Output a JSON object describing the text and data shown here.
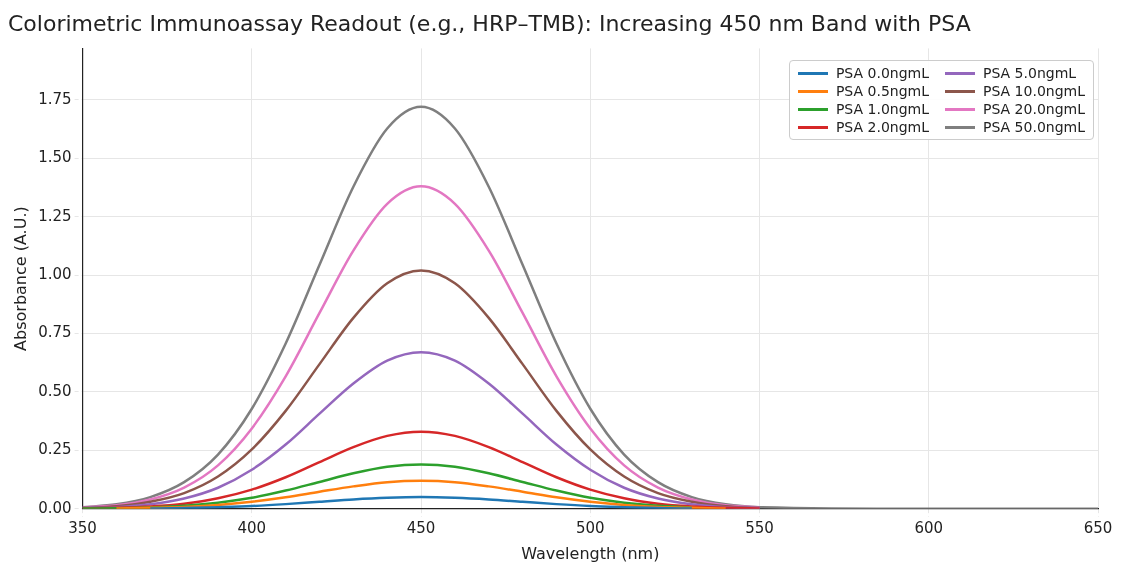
{
  "chart_data": {
    "type": "line",
    "title": "Colorimetric Immunoassay Readout (e.g., HRP–TMB): Increasing 450 nm Band with PSA",
    "xlabel": "Wavelength (nm)",
    "ylabel": "Absorbance (A.U.)",
    "x": [
      350,
      360,
      370,
      380,
      390,
      400,
      410,
      420,
      430,
      440,
      450,
      460,
      470,
      480,
      490,
      500,
      510,
      520,
      530,
      540,
      550,
      600,
      650
    ],
    "series": [
      {
        "name": "PSA 0.0ngmL",
        "color": "#1f77b4",
        "values": [
          null,
          null,
          0.001,
          0.003,
          0.007,
          0.012,
          0.02,
          0.03,
          0.04,
          0.047,
          0.05,
          0.047,
          0.04,
          0.03,
          0.02,
          0.012,
          0.007,
          0.003,
          0.001,
          null,
          null,
          null,
          null
        ]
      },
      {
        "name": "PSA 0.5ngmL",
        "color": "#ff7f0e",
        "values": [
          null,
          0.001,
          0.004,
          0.008,
          0.016,
          0.03,
          0.049,
          0.073,
          0.096,
          0.114,
          0.12,
          0.114,
          0.096,
          0.073,
          0.049,
          0.03,
          0.016,
          0.008,
          0.004,
          0.001,
          null,
          null,
          null
        ]
      },
      {
        "name": "PSA 1.0ngmL",
        "color": "#2ca02c",
        "values": [
          0.001,
          0.002,
          0.006,
          0.013,
          0.026,
          0.047,
          0.078,
          0.115,
          0.152,
          0.18,
          0.19,
          0.18,
          0.152,
          0.115,
          0.078,
          0.047,
          0.026,
          0.013,
          0.006,
          null,
          null,
          null,
          null
        ]
      },
      {
        "name": "PSA 2.0ngmL",
        "color": "#d62728",
        "values": [
          0.001,
          0.004,
          0.01,
          0.022,
          0.045,
          0.082,
          0.135,
          0.2,
          0.264,
          0.312,
          0.33,
          0.312,
          0.264,
          0.2,
          0.135,
          0.082,
          0.045,
          0.022,
          0.01,
          0.004,
          0.001,
          null,
          null
        ]
      },
      {
        "name": "PSA 5.0ngmL",
        "color": "#9467bd",
        "values": [
          0.003,
          0.007,
          0.019,
          0.044,
          0.09,
          0.167,
          0.275,
          0.407,
          0.536,
          0.634,
          0.67,
          0.634,
          0.536,
          0.407,
          0.275,
          0.167,
          0.09,
          0.044,
          0.019,
          0.007,
          0.003,
          null,
          null
        ]
      },
      {
        "name": "PSA 10.0ngmL",
        "color": "#8c564b",
        "values": [
          0.004,
          0.011,
          0.03,
          0.067,
          0.138,
          0.254,
          0.419,
          0.619,
          0.817,
          0.965,
          1.02,
          0.965,
          0.817,
          0.619,
          0.419,
          0.254,
          0.138,
          0.067,
          0.03,
          0.011,
          0.004,
          null,
          null
        ]
      },
      {
        "name": "PSA 20.0ngmL",
        "color": "#e377c2",
        "values": [
          0.006,
          0.015,
          0.04,
          0.091,
          0.186,
          0.344,
          0.567,
          0.838,
          1.105,
          1.305,
          1.38,
          1.305,
          1.105,
          0.838,
          0.567,
          0.344,
          0.186,
          0.091,
          0.04,
          0.015,
          0.006,
          null,
          null
        ]
      },
      {
        "name": "PSA 50.0ngmL",
        "color": "#7f7f7f",
        "values": [
          0.007,
          0.019,
          0.05,
          0.114,
          0.232,
          0.428,
          0.707,
          1.044,
          1.378,
          1.627,
          1.72,
          1.627,
          1.378,
          1.044,
          0.707,
          0.428,
          0.232,
          0.114,
          0.05,
          0.019,
          0.007,
          0,
          0
        ]
      }
    ],
    "xlim": [
      350,
      650
    ],
    "xticks": [
      350,
      400,
      450,
      500,
      550,
      600,
      650
    ],
    "ylim": [
      0,
      1.97
    ],
    "yticks": [
      {
        "value": 0,
        "label": "0.00"
      },
      {
        "value": 0.25,
        "label": "0.25"
      },
      {
        "value": 0.5,
        "label": "0.50"
      },
      {
        "value": 0.75,
        "label": "0.75"
      },
      {
        "value": 1,
        "label": "1.00"
      },
      {
        "value": 1.25,
        "label": "1.25"
      },
      {
        "value": 1.5,
        "label": "1.50"
      },
      {
        "value": 1.75,
        "label": "1.75"
      }
    ],
    "grid": true,
    "legend": "top right",
    "marker": "none",
    "line_style": "solid"
  }
}
